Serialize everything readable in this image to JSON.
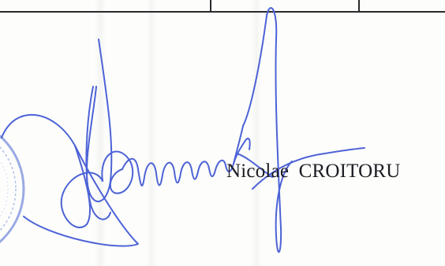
{
  "signer": {
    "name": "Nicolae  CROITORU"
  },
  "colors": {
    "ink_blue": "#4d63d6",
    "table_line": "#2a2a2a",
    "paper": "#fdfdfc"
  }
}
